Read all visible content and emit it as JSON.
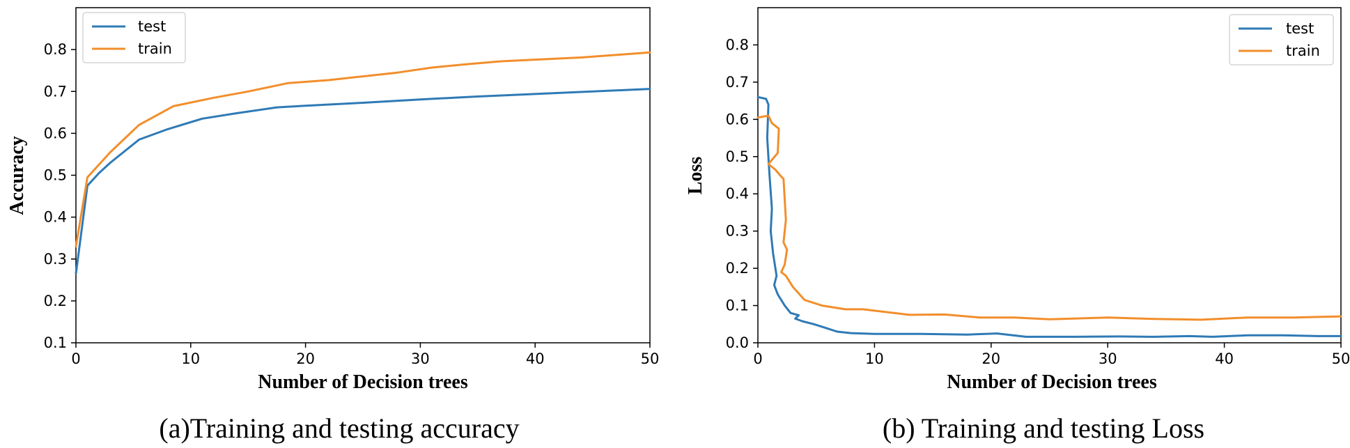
{
  "chart_data": [
    {
      "type": "line",
      "caption": "(a)Training and testing accuracy",
      "xlabel": "Number of Decision trees",
      "ylabel": "Accuracy",
      "xlim": [
        0,
        50
      ],
      "ylim": [
        0.1,
        0.9
      ],
      "xticks": [
        0,
        10,
        20,
        30,
        40,
        50
      ],
      "yticks": [
        0.1,
        0.2,
        0.3,
        0.4,
        0.5,
        0.6,
        0.7,
        0.8
      ],
      "legend": "top-left",
      "grid": false,
      "series": [
        {
          "name": "test",
          "color": "#2e7ab6",
          "x": [
            0,
            1,
            2,
            3,
            5.5,
            8,
            11,
            14,
            17.5,
            20,
            25,
            30,
            35,
            40,
            45,
            50
          ],
          "y": [
            0.265,
            0.475,
            0.505,
            0.53,
            0.585,
            0.61,
            0.635,
            0.648,
            0.662,
            0.666,
            0.673,
            0.681,
            0.688,
            0.694,
            0.7,
            0.706
          ]
        },
        {
          "name": "train",
          "color": "#f28e2b",
          "x": [
            0,
            1,
            3,
            5.5,
            8.5,
            12,
            15,
            18.5,
            22,
            25,
            28,
            31,
            34,
            37,
            40,
            44,
            47,
            50
          ],
          "y": [
            0.33,
            0.495,
            0.555,
            0.62,
            0.665,
            0.685,
            0.7,
            0.72,
            0.727,
            0.736,
            0.745,
            0.757,
            0.765,
            0.772,
            0.776,
            0.781,
            0.787,
            0.793
          ]
        }
      ]
    },
    {
      "type": "line",
      "caption": "(b) Training and testing Loss",
      "xlabel": "Number of Decision trees",
      "ylabel": "Loss",
      "xlim": [
        0,
        50
      ],
      "ylim": [
        0,
        0.9
      ],
      "xticks": [
        0,
        10,
        20,
        30,
        40,
        50
      ],
      "yticks": [
        0.0,
        0.1,
        0.2,
        0.3,
        0.4,
        0.5,
        0.6,
        0.7,
        0.8
      ],
      "legend": "top-right",
      "grid": false,
      "series": [
        {
          "name": "test",
          "color": "#2e7ab6",
          "x": [
            0,
            0.7,
            0.9,
            0.8,
            1.0,
            1.2,
            1.1,
            1.3,
            1.6,
            1.4,
            1.7,
            2.3,
            2.8,
            3.5,
            3.2,
            3.8,
            4.8,
            5.8,
            6.8,
            8,
            10,
            14,
            18,
            20.5,
            23,
            27,
            31,
            34,
            37,
            39,
            42,
            45,
            48,
            50
          ],
          "y": [
            0.66,
            0.655,
            0.64,
            0.55,
            0.45,
            0.36,
            0.3,
            0.24,
            0.18,
            0.155,
            0.13,
            0.1,
            0.08,
            0.074,
            0.065,
            0.058,
            0.05,
            0.04,
            0.03,
            0.026,
            0.024,
            0.024,
            0.022,
            0.025,
            0.016,
            0.016,
            0.017,
            0.016,
            0.018,
            0.016,
            0.02,
            0.02,
            0.018,
            0.018
          ]
        },
        {
          "name": "train",
          "color": "#f28e2b",
          "x": [
            0,
            0.9,
            1.2,
            1.4,
            1.8,
            1.7,
            0.9,
            1.5,
            1.9,
            2.2,
            2.4,
            2.2,
            2.5,
            2.3,
            2.0,
            2.4,
            3.0,
            4.0,
            5.5,
            7.5,
            9,
            13,
            16,
            19,
            22,
            25,
            30,
            34,
            38,
            42,
            46,
            50
          ],
          "y": [
            0.605,
            0.61,
            0.59,
            0.585,
            0.575,
            0.51,
            0.48,
            0.465,
            0.45,
            0.44,
            0.33,
            0.27,
            0.25,
            0.21,
            0.19,
            0.18,
            0.15,
            0.115,
            0.1,
            0.09,
            0.09,
            0.075,
            0.076,
            0.068,
            0.068,
            0.063,
            0.068,
            0.064,
            0.062,
            0.068,
            0.068,
            0.071
          ]
        }
      ]
    }
  ]
}
